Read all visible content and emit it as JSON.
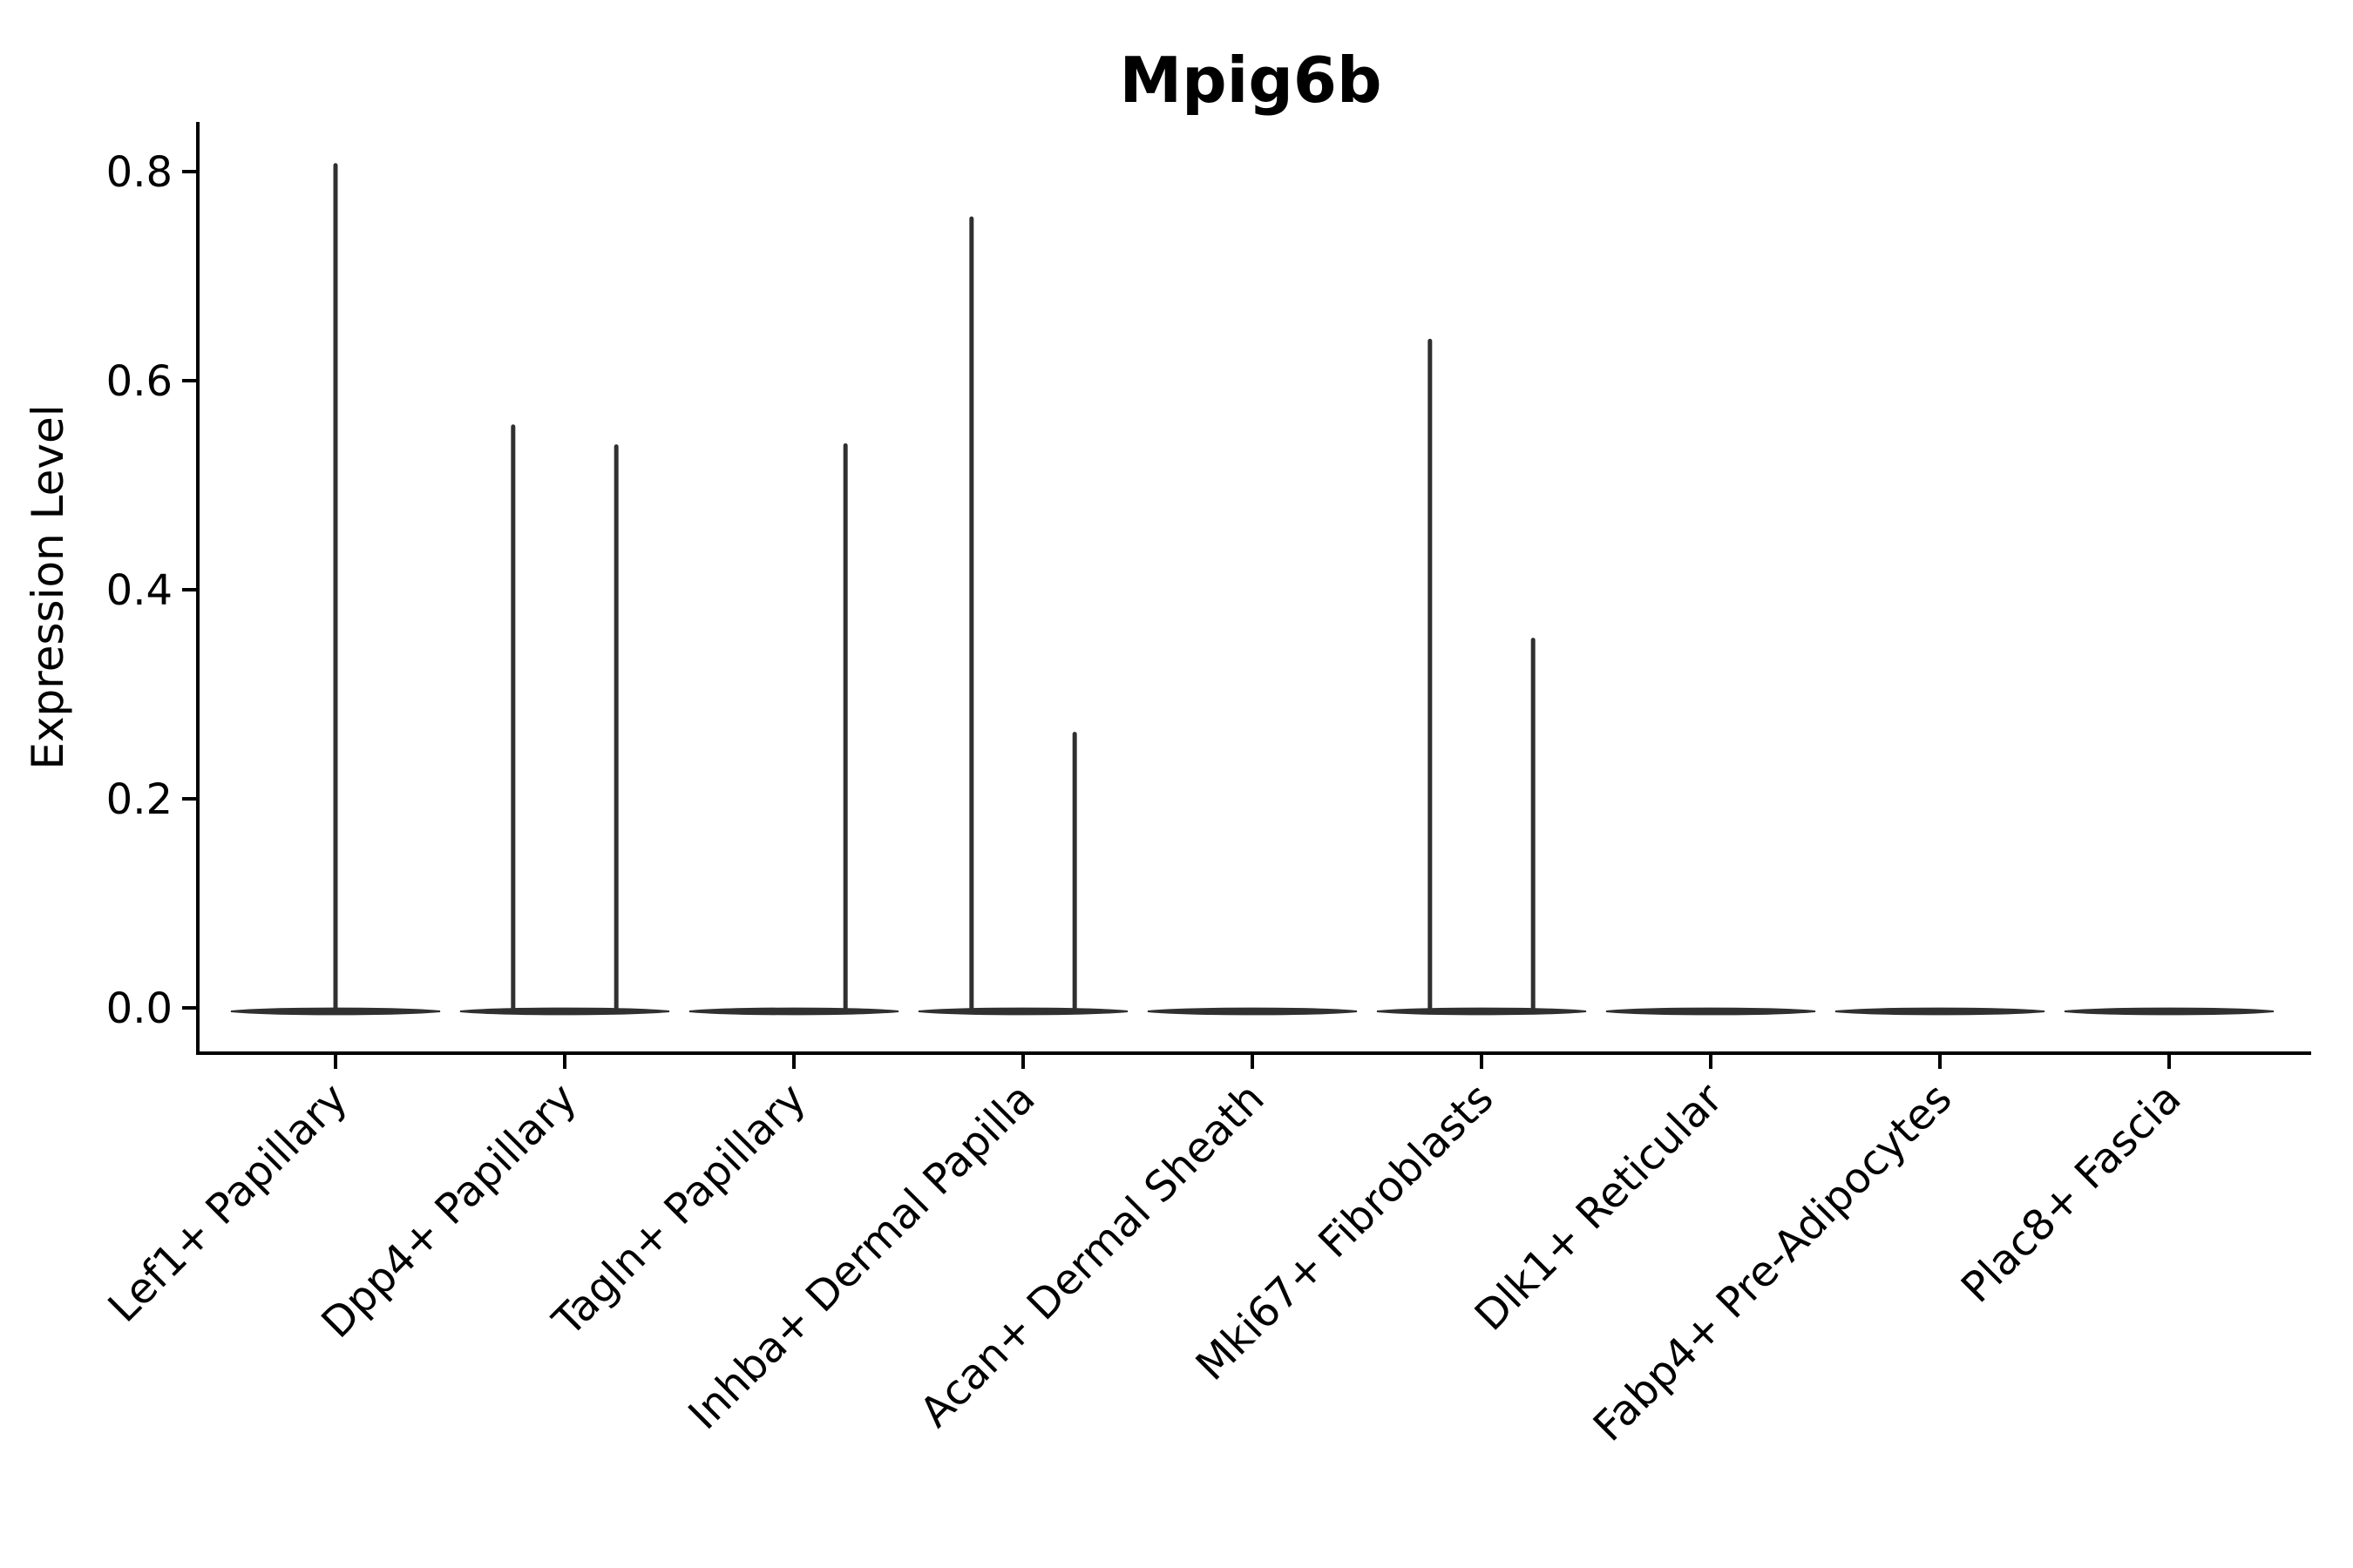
{
  "page": {
    "background": "#ffffff"
  },
  "chart_data": {
    "type": "violin",
    "title": "Mpig6b",
    "xlabel": "",
    "ylabel": "Expression Level",
    "ylim": [
      0,
      0.85
    ],
    "grid": false,
    "legend": "none",
    "y_ticks": [
      {
        "value": 0.0,
        "label": "0.0"
      },
      {
        "value": 0.2,
        "label": "0.2"
      },
      {
        "value": 0.4,
        "label": "0.4"
      },
      {
        "value": 0.6,
        "label": "0.6"
      },
      {
        "value": 0.8,
        "label": "0.8"
      }
    ],
    "categories": [
      "Lef1+ Papillary",
      "Dpp4+ Papillary",
      "Tagln+ Papillary",
      "Inhba+ Dermal Papilla",
      "Acan+ Dermal Sheath",
      "Mki67+ Fibroblasts",
      "Dlk1+ Reticular",
      "Fabp4+ Pre-Adipocytes",
      "Plac8+ Fascia"
    ],
    "violins": [
      {
        "baseline_value": 0.0,
        "spikes": [
          {
            "value": 0.806,
            "offset": 0.0
          }
        ]
      },
      {
        "baseline_value": 0.0,
        "spikes": [
          {
            "value": 0.556,
            "offset": -0.225
          },
          {
            "value": 0.537,
            "offset": 0.225
          }
        ]
      },
      {
        "baseline_value": 0.0,
        "spikes": [
          {
            "value": 0.538,
            "offset": 0.225
          }
        ]
      },
      {
        "baseline_value": 0.0,
        "spikes": [
          {
            "value": 0.755,
            "offset": -0.225
          },
          {
            "value": 0.262,
            "offset": 0.225
          }
        ]
      },
      {
        "baseline_value": 0.0,
        "spikes": []
      },
      {
        "baseline_value": 0.0,
        "spikes": [
          {
            "value": 0.638,
            "offset": -0.225
          },
          {
            "value": 0.352,
            "offset": 0.225
          }
        ]
      },
      {
        "baseline_value": 0.0,
        "spikes": []
      },
      {
        "baseline_value": 0.0,
        "spikes": []
      },
      {
        "baseline_value": 0.0,
        "spikes": []
      }
    ],
    "colors": {
      "violin_stroke": "#303030",
      "axis": "#000000",
      "text": "#000000",
      "background": "#ffffff"
    }
  }
}
